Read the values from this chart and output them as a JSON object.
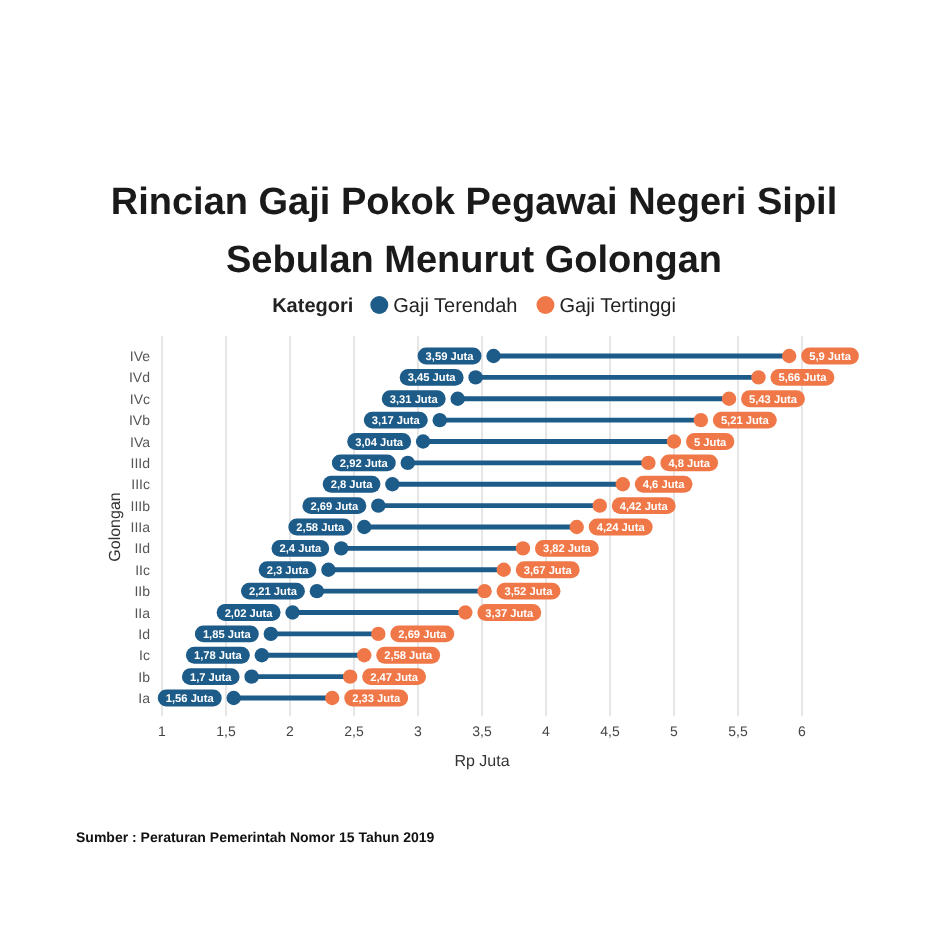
{
  "chart_data": {
    "type": "scatter",
    "orientation": "horizontal",
    "title": "Rincian Gaji Pokok Pegawai Negeri Sipil Sebulan Menurut Golongan",
    "xlabel": "Rp Juta",
    "ylabel": "Golongan",
    "legend_title": "Kategori",
    "legend": "top",
    "marker": "circle",
    "grid": "x",
    "categories": [
      "IVe",
      "IVd",
      "IVc",
      "IVb",
      "IVa",
      "IIId",
      "IIIc",
      "IIIb",
      "IIIa",
      "IId",
      "IIc",
      "IIb",
      "IIa",
      "Id",
      "Ic",
      "Ib",
      "Ia"
    ],
    "xlim": [
      1,
      6
    ],
    "xticks": [
      1,
      {
        "value": 1.5,
        "label": "1,5"
      },
      2,
      {
        "value": 2.5,
        "label": "2,5"
      },
      3,
      {
        "value": 3.5,
        "label": "3,5"
      },
      4,
      {
        "value": 4.5,
        "label": "4,5"
      },
      5,
      {
        "value": 5.5,
        "label": "5,5"
      },
      6
    ],
    "series": [
      {
        "name": "Gaji Terendah",
        "color": "#1d5b88",
        "values": [
          3.59,
          3.45,
          3.31,
          3.17,
          3.04,
          2.92,
          2.8,
          2.69,
          2.58,
          2.4,
          2.3,
          2.21,
          2.02,
          1.85,
          1.78,
          1.7,
          1.56
        ],
        "value_labels": [
          "3,59 Juta",
          "3,45 Juta",
          "3,31 Juta",
          "3,17 Juta",
          "3,04 Juta",
          "2,92 Juta",
          "2,8 Juta",
          "2,69 Juta",
          "2,58 Juta",
          "2,4 Juta",
          "2,3 Juta",
          "2,21 Juta",
          "2,02 Juta",
          "1,85 Juta",
          "1,78 Juta",
          "1,7 Juta",
          "1,56 Juta"
        ]
      },
      {
        "name": "Gaji Tertinggi",
        "color": "#f07848",
        "values": [
          5.9,
          5.66,
          5.43,
          5.21,
          5,
          4.8,
          4.6,
          4.42,
          4.24,
          3.82,
          3.67,
          3.52,
          3.37,
          2.69,
          2.58,
          2.47,
          2.33
        ],
        "value_labels": [
          "5,9 Juta",
          "5,66 Juta",
          "5,43 Juta",
          "5,21 Juta",
          "5 Juta",
          "4,8 Juta",
          "4,6 Juta",
          "4,42 Juta",
          "4,24 Juta",
          "3,82 Juta",
          "3,67 Juta",
          "3,52 Juta",
          "3,37 Juta",
          "2,69 Juta",
          "2,58 Juta",
          "2,47 Juta",
          "2,33 Juta"
        ]
      }
    ],
    "annotations": [
      "Sumber : Peraturan Pemerintah Nomor 15 Tahun 2019"
    ]
  }
}
